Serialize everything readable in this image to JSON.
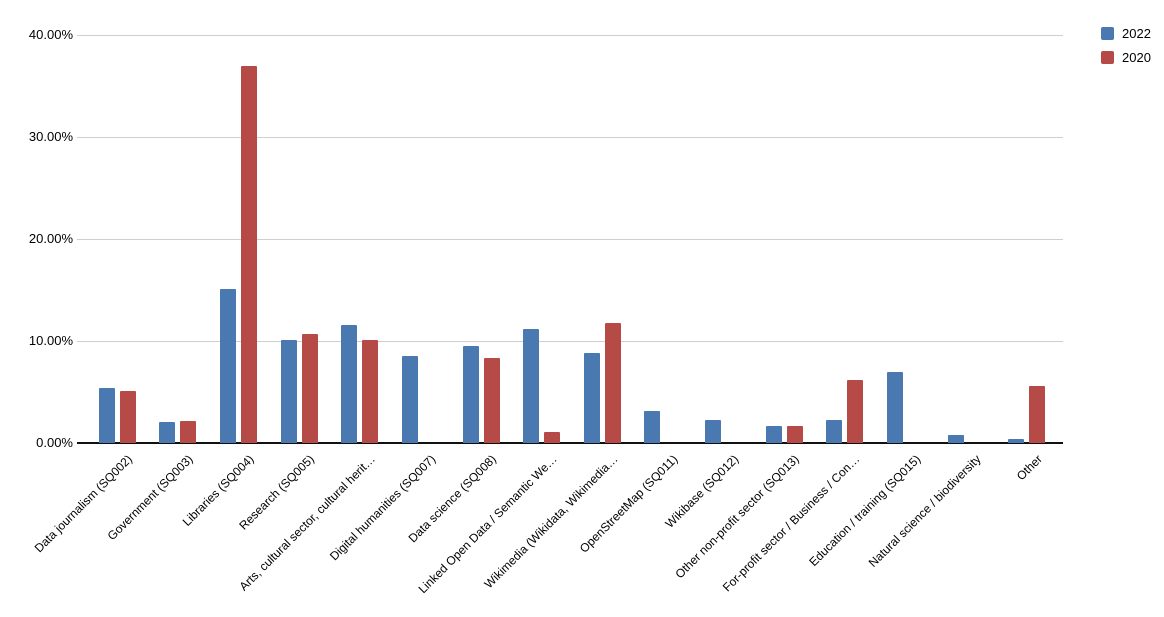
{
  "chart_data": {
    "type": "bar",
    "title": "",
    "xlabel": "",
    "ylabel": "",
    "categories": [
      "Data journalism (SQ002)",
      "Government (SQ003)",
      "Libraries (SQ004)",
      "Research (SQ005)",
      "Arts, cultural sector, cultural herit…",
      "Digital humanities (SQ007)",
      "Data science (SQ008)",
      "Linked Open Data / Semantic We…",
      "Wikimedia (Wikidata, Wikimedia…",
      "OpenStreetMap (SQ011)",
      "Wikibase (SQ012)",
      "Other non-profit sector (SQ013)",
      "For-profit sector / Business / Con…",
      "Education / training (SQ015)",
      "Natural science / biodiversity",
      "Other"
    ],
    "series": [
      {
        "name": "2022",
        "color": "#4a78b0",
        "values": [
          5.4,
          2.1,
          15.1,
          10.1,
          11.6,
          8.5,
          9.5,
          11.2,
          8.8,
          3.1,
          2.3,
          1.7,
          2.3,
          7.0,
          0.8,
          0.4
        ]
      },
      {
        "name": "2020",
        "color": "#b64a47",
        "values": [
          5.1,
          2.2,
          37.0,
          10.7,
          10.1,
          0,
          8.3,
          1.1,
          11.8,
          0,
          0,
          1.7,
          6.2,
          0,
          0,
          5.6
        ]
      }
    ],
    "ylim": [
      0,
      40
    ],
    "yticks": [
      {
        "label": "0.00%",
        "value": 0
      },
      {
        "label": "10.00%",
        "value": 10
      },
      {
        "label": "20.00%",
        "value": 20
      },
      {
        "label": "30.00%",
        "value": 30
      },
      {
        "label": "40.00%",
        "value": 40
      }
    ],
    "grid": "horizontal",
    "legend_position": "top-right"
  }
}
